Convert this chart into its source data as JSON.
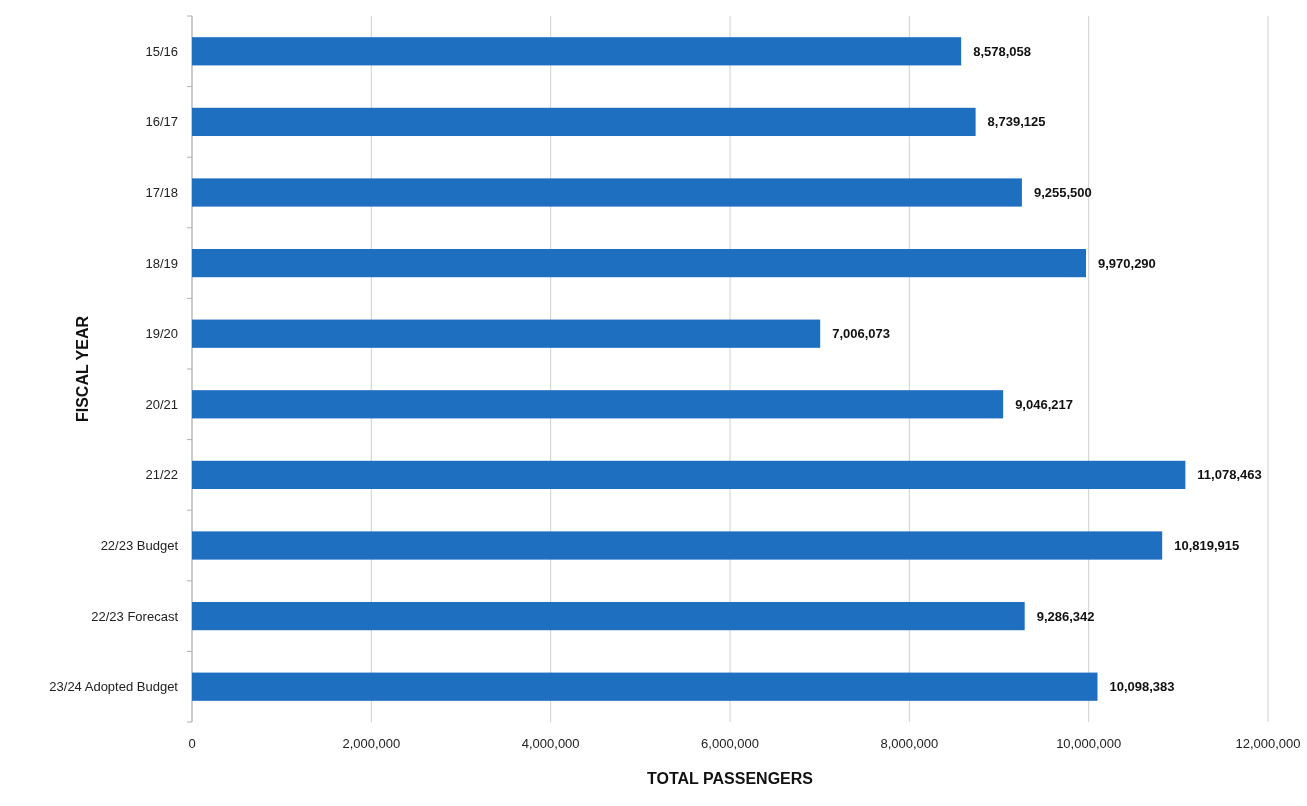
{
  "chart_data": {
    "type": "bar",
    "orientation": "horizontal",
    "xlabel": "TOTAL PASSENGERS",
    "ylabel": "FISCAL YEAR",
    "categories": [
      "15/16",
      "16/17",
      "17/18",
      "18/19",
      "19/20",
      "20/21",
      "21/22",
      "22/23 Budget",
      "22/23 Forecast",
      "23/24 Adopted Budget"
    ],
    "values": [
      8578058,
      8739125,
      9255500,
      9970290,
      7006073,
      9046217,
      11078463,
      10819915,
      9286342,
      10098383
    ],
    "color": "#1f6fc1",
    "xlim": [
      0,
      12000000
    ],
    "xticks": [
      {
        "value": 0,
        "label": "0"
      },
      {
        "value": 2000000,
        "label": "2,000,000"
      },
      {
        "value": 4000000,
        "label": "4,000,000"
      },
      {
        "value": 6000000,
        "label": "6,000,000"
      },
      {
        "value": 8000000,
        "label": "8,000,000"
      },
      {
        "value": 10000000,
        "label": "10,000,000"
      },
      {
        "value": 12000000,
        "label": "12,000,000"
      }
    ],
    "value_labels": [
      "8,578,058",
      "8,739,125",
      "9,255,500",
      "9,970,290",
      "7,006,073",
      "9,046,217",
      "11,078,463",
      "10,819,915",
      "9,286,342",
      "10,098,383"
    ],
    "grid": "x"
  }
}
